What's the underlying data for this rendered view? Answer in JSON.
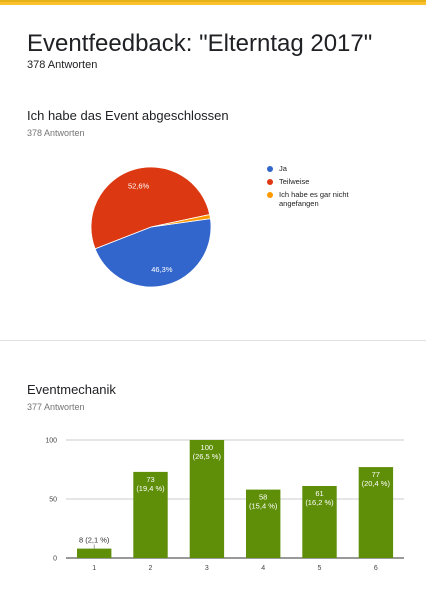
{
  "header": {
    "title": "Eventfeedback: \"Elterntag 2017\"",
    "responses": "378 Antworten"
  },
  "colors": {
    "accent": "#fbc02d",
    "pie_ja": "#3366cc",
    "pie_teilweise": "#dc3912",
    "pie_gar_nicht": "#ff9900",
    "bar": "#5f8f08"
  },
  "chart_data": [
    {
      "type": "pie",
      "title": "Ich habe das Event abgeschlossen",
      "subtitle": "378 Antworten",
      "slices": [
        {
          "label": "Ja",
          "percent": 46.3,
          "display": "46,3%",
          "color": "#3366cc"
        },
        {
          "label": "Teilweise",
          "percent": 52.6,
          "display": "52,6%",
          "color": "#dc3912"
        },
        {
          "label": "Ich habe es gar nicht angefangen",
          "percent": 1.1,
          "display": "",
          "color": "#ff9900"
        }
      ],
      "legend_position": "right"
    },
    {
      "type": "bar",
      "title": "Eventmechanik",
      "subtitle": "377 Antworten",
      "categories": [
        "1",
        "2",
        "3",
        "4",
        "5",
        "6"
      ],
      "values": [
        8,
        73,
        100,
        58,
        61,
        77
      ],
      "labels": [
        "8 (2,1 %)",
        "73\n(19,4 %)",
        "100\n(26,5 %)",
        "58\n(15,4 %)",
        "61\n(16,2 %)",
        "77\n(20,4 %)"
      ],
      "yticks": [
        "0",
        "50",
        "100"
      ],
      "ylim": [
        0,
        100
      ],
      "grid": true,
      "color": "#5f8f08"
    }
  ]
}
